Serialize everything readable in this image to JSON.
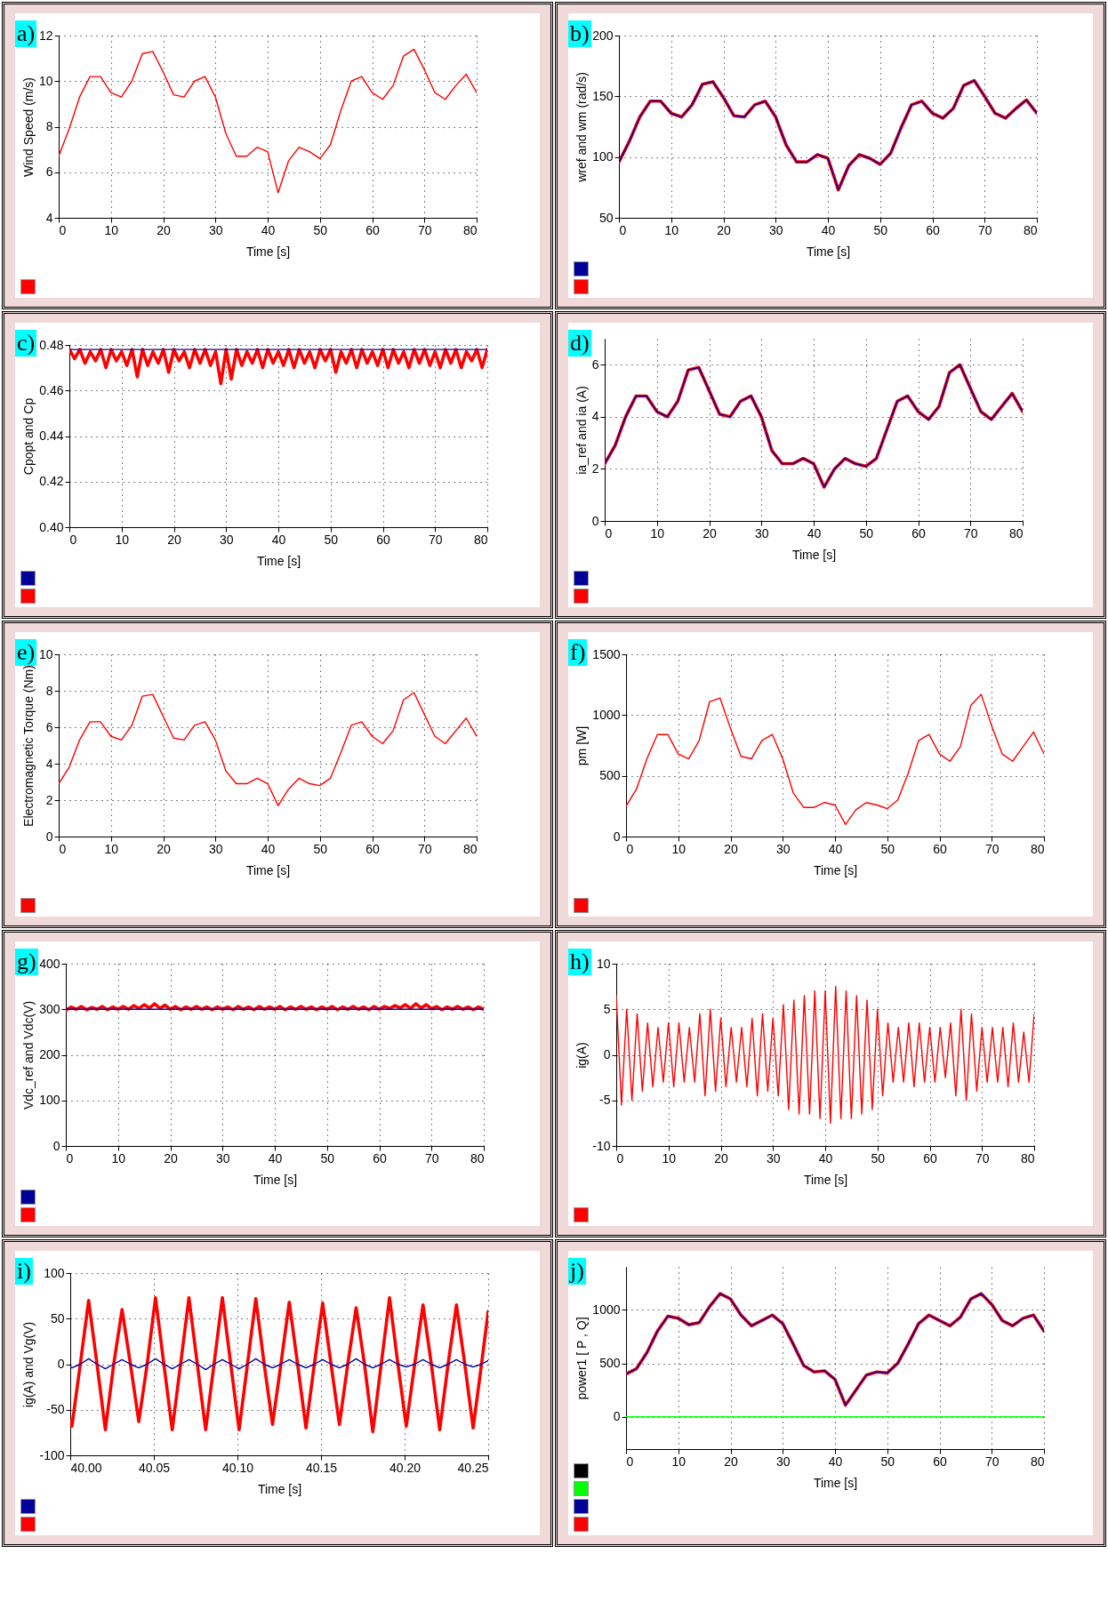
{
  "chart_data": [
    {
      "type": "line",
      "title": "a)",
      "xlabel": "Time [s]",
      "ylabel": "Wind Speed (m/s)",
      "x": [
        0,
        2,
        4,
        6,
        8,
        10,
        12,
        14,
        16,
        18,
        20,
        22,
        24,
        26,
        28,
        30,
        32,
        34,
        36,
        38,
        40,
        42,
        44,
        46,
        48,
        50,
        52,
        54,
        56,
        58,
        60,
        62,
        64,
        66,
        68,
        70,
        72,
        74,
        76,
        78,
        80
      ],
      "series": [
        {
          "color": "#ff0000",
          "values": [
            6.7,
            7.9,
            9.3,
            10.2,
            10.2,
            9.5,
            9.3,
            10.0,
            11.2,
            11.3,
            10.4,
            9.4,
            9.3,
            10.0,
            10.2,
            9.3,
            7.7,
            6.7,
            6.7,
            7.1,
            6.9,
            5.1,
            6.5,
            7.1,
            6.9,
            6.6,
            7.2,
            8.7,
            10.0,
            10.2,
            9.5,
            9.2,
            9.8,
            11.1,
            11.4,
            10.5,
            9.5,
            9.2,
            9.8,
            10.3,
            9.5
          ]
        }
      ],
      "xlim": [
        0,
        80
      ],
      "xticks": [
        0,
        10,
        20,
        30,
        40,
        50,
        60,
        70,
        80
      ],
      "ylim": [
        4,
        12
      ],
      "yticks": [
        4,
        6,
        8,
        10,
        12
      ],
      "grid": true
    },
    {
      "type": "line",
      "title": "b)",
      "xlabel": "Time [s]",
      "ylabel": "wref and wm (rad/s)",
      "x": [
        0,
        2,
        4,
        6,
        8,
        10,
        12,
        14,
        16,
        18,
        20,
        22,
        24,
        26,
        28,
        30,
        32,
        34,
        36,
        38,
        40,
        42,
        44,
        46,
        48,
        50,
        52,
        54,
        56,
        58,
        60,
        62,
        64,
        66,
        68,
        70,
        72,
        74,
        76,
        78,
        80
      ],
      "series": [
        {
          "color": "#000099",
          "values": [
            96,
            113,
            133,
            146,
            146,
            136,
            133,
            143,
            160,
            162,
            149,
            134,
            133,
            143,
            146,
            133,
            110,
            96,
            96,
            102,
            99,
            73,
            93,
            102,
            99,
            94,
            103,
            124,
            143,
            146,
            136,
            132,
            140,
            159,
            163,
            150,
            136,
            132,
            140,
            147,
            136
          ]
        },
        {
          "color": "#ff0000",
          "values": [
            96,
            113,
            133,
            146,
            146,
            136,
            133,
            143,
            160,
            162,
            149,
            134,
            133,
            143,
            146,
            133,
            110,
            96,
            96,
            102,
            99,
            73,
            93,
            102,
            99,
            94,
            103,
            124,
            143,
            146,
            136,
            132,
            140,
            159,
            163,
            150,
            136,
            132,
            140,
            147,
            136
          ]
        }
      ],
      "xlim": [
        0,
        80
      ],
      "xticks": [
        0,
        10,
        20,
        30,
        40,
        50,
        60,
        70,
        80
      ],
      "ylim": [
        50,
        200
      ],
      "yticks": [
        50,
        100,
        150,
        200
      ],
      "grid": true
    },
    {
      "type": "line",
      "title": "c)",
      "xlabel": "Time [s]",
      "ylabel": "Cpopt and Cp",
      "x": [
        0,
        1,
        2,
        3,
        4,
        5,
        6,
        7,
        8,
        9,
        10,
        11,
        12,
        13,
        14,
        15,
        16,
        17,
        18,
        19,
        20,
        21,
        22,
        23,
        24,
        25,
        26,
        27,
        28,
        29,
        30,
        31,
        32,
        33,
        34,
        35,
        36,
        37,
        38,
        39,
        40,
        41,
        42,
        43,
        44,
        45,
        46,
        47,
        48,
        49,
        50,
        51,
        52,
        53,
        54,
        55,
        56,
        57,
        58,
        59,
        60,
        61,
        62,
        63,
        64,
        65,
        66,
        67,
        68,
        69,
        70,
        71,
        72,
        73,
        74,
        75,
        76,
        77,
        78,
        79,
        80
      ],
      "series": [
        {
          "color": "#000099",
          "values": [
            0.478,
            0.478,
            0.478,
            0.478,
            0.478,
            0.478,
            0.478,
            0.478,
            0.478,
            0.478,
            0.478,
            0.478,
            0.478,
            0.478,
            0.478,
            0.478,
            0.478,
            0.478,
            0.478,
            0.478,
            0.478,
            0.478,
            0.478,
            0.478,
            0.478,
            0.478,
            0.478,
            0.478,
            0.478,
            0.478,
            0.478,
            0.478,
            0.478,
            0.478,
            0.478,
            0.478,
            0.478,
            0.478,
            0.478,
            0.478,
            0.478,
            0.478,
            0.478,
            0.478,
            0.478,
            0.478,
            0.478,
            0.478,
            0.478,
            0.478,
            0.478,
            0.478,
            0.478,
            0.478,
            0.478,
            0.478,
            0.478,
            0.478,
            0.478,
            0.478,
            0.478,
            0.478,
            0.478,
            0.478,
            0.478,
            0.478,
            0.478,
            0.478,
            0.478,
            0.478,
            0.478,
            0.478,
            0.478,
            0.478,
            0.478,
            0.478,
            0.478,
            0.478,
            0.478,
            0.478,
            0.478
          ]
        },
        {
          "color": "#ff0000",
          "values": [
            0.478,
            0.474,
            0.478,
            0.472,
            0.477,
            0.473,
            0.478,
            0.47,
            0.478,
            0.473,
            0.477,
            0.471,
            0.478,
            0.466,
            0.478,
            0.471,
            0.477,
            0.472,
            0.478,
            0.468,
            0.478,
            0.473,
            0.477,
            0.47,
            0.478,
            0.472,
            0.478,
            0.471,
            0.477,
            0.463,
            0.478,
            0.465,
            0.478,
            0.471,
            0.477,
            0.472,
            0.478,
            0.47,
            0.478,
            0.472,
            0.477,
            0.471,
            0.478,
            0.47,
            0.478,
            0.472,
            0.477,
            0.47,
            0.478,
            0.473,
            0.478,
            0.468,
            0.477,
            0.472,
            0.478,
            0.47,
            0.478,
            0.472,
            0.477,
            0.471,
            0.478,
            0.47,
            0.478,
            0.472,
            0.477,
            0.47,
            0.478,
            0.472,
            0.478,
            0.471,
            0.477,
            0.47,
            0.478,
            0.472,
            0.478,
            0.47,
            0.477,
            0.473,
            0.478,
            0.47,
            0.478
          ]
        }
      ],
      "xlim": [
        0,
        80
      ],
      "xticks": [
        0,
        10,
        20,
        30,
        40,
        50,
        60,
        70,
        80
      ],
      "ylim": [
        0.4,
        0.48
      ],
      "yticks": [
        {
          "value": 0.4,
          "label": "0.40"
        },
        0.42,
        0.44,
        0.46,
        0.48
      ],
      "grid": true
    },
    {
      "type": "line",
      "title": "d)",
      "xlabel": "Time [s]",
      "ylabel": "ia_ref and ia (A)",
      "x": [
        0,
        2,
        4,
        6,
        8,
        10,
        12,
        14,
        16,
        18,
        20,
        22,
        24,
        26,
        28,
        30,
        32,
        34,
        36,
        38,
        40,
        42,
        44,
        46,
        48,
        50,
        52,
        54,
        56,
        58,
        60,
        62,
        64,
        66,
        68,
        70,
        72,
        74,
        76,
        78,
        80
      ],
      "series": [
        {
          "color": "#000099",
          "values": [
            2.2,
            2.9,
            4.0,
            4.8,
            4.8,
            4.2,
            4.0,
            4.6,
            5.8,
            5.9,
            5.0,
            4.1,
            4.0,
            4.6,
            4.8,
            4.0,
            2.7,
            2.2,
            2.2,
            2.4,
            2.2,
            1.3,
            2.0,
            2.4,
            2.2,
            2.1,
            2.4,
            3.5,
            4.6,
            4.8,
            4.2,
            3.9,
            4.4,
            5.7,
            6.0,
            5.1,
            4.2,
            3.9,
            4.4,
            4.9,
            4.2
          ]
        },
        {
          "color": "#ff0000",
          "values": [
            2.2,
            2.9,
            4.0,
            4.8,
            4.8,
            4.2,
            4.0,
            4.6,
            5.8,
            5.9,
            5.0,
            4.1,
            4.0,
            4.6,
            4.8,
            4.0,
            2.7,
            2.2,
            2.2,
            2.4,
            2.2,
            1.3,
            2.0,
            2.4,
            2.2,
            2.1,
            2.4,
            3.5,
            4.6,
            4.8,
            4.2,
            3.9,
            4.4,
            5.7,
            6.0,
            5.1,
            4.2,
            3.9,
            4.4,
            4.9,
            4.2
          ]
        }
      ],
      "xlim": [
        0,
        80
      ],
      "xticks": [
        0,
        10,
        20,
        30,
        40,
        50,
        60,
        70,
        80
      ],
      "ylim": [
        0,
        7
      ],
      "yticks": [
        0,
        2,
        4,
        6
      ],
      "grid": true
    },
    {
      "type": "line",
      "title": "e)",
      "xlabel": "Time [s]",
      "ylabel": "Electromagnetic Torque (Nm)",
      "x": [
        0,
        2,
        4,
        6,
        8,
        10,
        12,
        14,
        16,
        18,
        20,
        22,
        24,
        26,
        28,
        30,
        32,
        34,
        36,
        38,
        40,
        42,
        44,
        46,
        48,
        50,
        52,
        54,
        56,
        58,
        60,
        62,
        64,
        66,
        68,
        70,
        72,
        74,
        76,
        78,
        80
      ],
      "series": [
        {
          "color": "#ff0000",
          "values": [
            2.9,
            3.8,
            5.3,
            6.3,
            6.3,
            5.5,
            5.3,
            6.1,
            7.7,
            7.8,
            6.6,
            5.4,
            5.3,
            6.1,
            6.3,
            5.3,
            3.6,
            2.9,
            2.9,
            3.2,
            2.9,
            1.7,
            2.6,
            3.2,
            2.9,
            2.8,
            3.2,
            4.6,
            6.1,
            6.3,
            5.5,
            5.1,
            5.8,
            7.5,
            7.9,
            6.7,
            5.5,
            5.1,
            5.8,
            6.5,
            5.5
          ]
        }
      ],
      "xlim": [
        0,
        80
      ],
      "xticks": [
        0,
        10,
        20,
        30,
        40,
        50,
        60,
        70,
        80
      ],
      "ylim": [
        0,
        10
      ],
      "yticks": [
        0,
        2,
        4,
        6,
        8,
        10
      ],
      "grid": true
    },
    {
      "type": "line",
      "title": "f)",
      "xlabel": "Time [s]",
      "ylabel": "pm [W]",
      "x": [
        0,
        2,
        4,
        6,
        8,
        10,
        12,
        14,
        16,
        18,
        20,
        22,
        24,
        26,
        28,
        30,
        32,
        34,
        36,
        38,
        40,
        42,
        44,
        46,
        48,
        50,
        52,
        54,
        56,
        58,
        60,
        62,
        64,
        66,
        68,
        70,
        72,
        74,
        76,
        78,
        80
      ],
      "series": [
        {
          "color": "#ff0000",
          "values": [
            250,
            390,
            640,
            840,
            840,
            680,
            640,
            790,
            1110,
            1140,
            890,
            660,
            640,
            790,
            840,
            640,
            360,
            240,
            240,
            280,
            260,
            100,
            220,
            280,
            260,
            230,
            300,
            520,
            790,
            840,
            680,
            620,
            740,
            1080,
            1170,
            910,
            680,
            620,
            740,
            860,
            680
          ]
        }
      ],
      "xlim": [
        0,
        80
      ],
      "xticks": [
        0,
        10,
        20,
        30,
        40,
        50,
        60,
        70,
        80
      ],
      "ylim": [
        0,
        1500
      ],
      "yticks": [
        0,
        500,
        1000,
        1500
      ],
      "grid": true
    },
    {
      "type": "line",
      "title": "g)",
      "xlabel": "Time [s]",
      "ylabel": "Vdc_ref and Vdc(V)",
      "x": [
        0,
        1,
        2,
        3,
        4,
        5,
        6,
        7,
        8,
        9,
        10,
        11,
        12,
        13,
        14,
        15,
        16,
        17,
        18,
        19,
        20,
        21,
        22,
        23,
        24,
        25,
        26,
        27,
        28,
        29,
        30,
        31,
        32,
        33,
        34,
        35,
        36,
        37,
        38,
        39,
        40,
        41,
        42,
        43,
        44,
        45,
        46,
        47,
        48,
        49,
        50,
        51,
        52,
        53,
        54,
        55,
        56,
        57,
        58,
        59,
        60,
        61,
        62,
        63,
        64,
        65,
        66,
        67,
        68,
        69,
        70,
        71,
        72,
        73,
        74,
        75,
        76,
        77,
        78,
        79,
        80
      ],
      "series": [
        {
          "color": "#000099",
          "values": [
            300,
            300,
            300,
            300,
            300,
            300,
            300,
            300,
            300,
            300,
            300,
            300,
            300,
            300,
            300,
            300,
            300,
            300,
            300,
            300,
            300,
            300,
            300,
            300,
            300,
            300,
            300,
            300,
            300,
            300,
            300,
            300,
            300,
            300,
            300,
            300,
            300,
            300,
            300,
            300,
            300,
            300,
            300,
            300,
            300,
            300,
            300,
            300,
            300,
            300,
            300,
            300,
            300,
            300,
            300,
            300,
            300,
            300,
            300,
            300,
            300,
            300,
            300,
            300,
            300,
            300,
            300,
            300,
            300,
            300,
            300,
            300,
            300,
            300,
            300,
            300,
            300,
            300,
            300,
            300,
            300
          ]
        },
        {
          "color": "#ff0000",
          "values": [
            298,
            305,
            300,
            306,
            299,
            304,
            300,
            306,
            299,
            305,
            300,
            306,
            300,
            308,
            302,
            310,
            303,
            312,
            302,
            309,
            300,
            306,
            299,
            305,
            300,
            306,
            300,
            305,
            299,
            305,
            300,
            305,
            299,
            306,
            300,
            305,
            299,
            306,
            300,
            305,
            300,
            306,
            299,
            305,
            300,
            306,
            300,
            305,
            299,
            305,
            300,
            306,
            299,
            305,
            300,
            306,
            300,
            305,
            299,
            306,
            300,
            306,
            302,
            308,
            303,
            310,
            302,
            312,
            303,
            310,
            301,
            306,
            299,
            305,
            300,
            306,
            300,
            305,
            299,
            305,
            300
          ]
        }
      ],
      "xlim": [
        0,
        80
      ],
      "xticks": [
        0,
        10,
        20,
        30,
        40,
        50,
        60,
        70,
        80
      ],
      "ylim": [
        0,
        400
      ],
      "yticks": [
        0,
        100,
        200,
        300,
        400
      ],
      "grid": true
    },
    {
      "type": "line",
      "title": "h)",
      "xlabel": "Time [s]",
      "ylabel": "ig(A)",
      "x": [
        0,
        1,
        2,
        3,
        4,
        5,
        6,
        7,
        8,
        9,
        10,
        11,
        12,
        13,
        14,
        15,
        16,
        17,
        18,
        19,
        20,
        21,
        22,
        23,
        24,
        25,
        26,
        27,
        28,
        29,
        30,
        31,
        32,
        33,
        34,
        35,
        36,
        37,
        38,
        39,
        40,
        41,
        42,
        43,
        44,
        45,
        46,
        47,
        48,
        49,
        50,
        51,
        52,
        53,
        54,
        55,
        56,
        57,
        58,
        59,
        60,
        61,
        62,
        63,
        64,
        65,
        66,
        67,
        68,
        69,
        70,
        71,
        72,
        73,
        74,
        75,
        76,
        77,
        78,
        79,
        80
      ],
      "series": [
        {
          "color": "#ff0000",
          "values": [
            6.5,
            -5.5,
            5,
            -5,
            4.5,
            -4,
            3.5,
            -3.5,
            3,
            -3,
            3.5,
            -3.5,
            3.5,
            -3,
            3,
            -3,
            4.5,
            -4.5,
            5,
            -4,
            4,
            -3.5,
            3,
            -3,
            3,
            -3.5,
            4,
            -4.5,
            4.5,
            -4,
            4,
            -4.5,
            5.5,
            -6,
            6,
            -6.5,
            6.5,
            -6.5,
            7,
            -7,
            7,
            -7.5,
            7.5,
            -7,
            7,
            -7,
            6.5,
            -6.5,
            6,
            -6,
            5,
            -4.5,
            3.5,
            -3,
            3,
            -3,
            3.5,
            -3.5,
            3.5,
            -3,
            3,
            -3,
            3,
            -2.5,
            3.5,
            -4.5,
            5,
            -5,
            4.5,
            -4,
            3,
            -3,
            3,
            -3,
            3,
            -3.5,
            3.5,
            -3,
            2.5,
            -3,
            4.5
          ]
        }
      ],
      "xlim": [
        0,
        80
      ],
      "xticks": [
        0,
        10,
        20,
        30,
        40,
        50,
        60,
        70,
        80
      ],
      "ylim": [
        -10,
        10
      ],
      "yticks": [
        -10,
        -5,
        0,
        5,
        10
      ],
      "grid": true
    },
    {
      "type": "line",
      "title": "i)",
      "xlabel": "Time [s]",
      "ylabel": "ig(A)  and Vg(V)",
      "x": [
        40,
        40.001,
        40.006,
        40.011,
        40.016,
        40.021,
        40.026,
        40.031,
        40.036,
        40.041,
        40.046,
        40.051,
        40.056,
        40.061,
        40.066,
        40.071,
        40.076,
        40.081,
        40.086,
        40.091,
        40.096,
        40.101,
        40.106,
        40.111,
        40.116,
        40.121,
        40.126,
        40.131,
        40.136,
        40.141,
        40.146,
        40.151,
        40.156,
        40.161,
        40.166,
        40.171,
        40.176,
        40.181,
        40.186,
        40.191,
        40.196,
        40.201,
        40.206,
        40.211,
        40.216,
        40.221,
        40.226,
        40.231,
        40.236,
        40.241,
        40.246,
        40.25
      ],
      "series": [
        {
          "color": "#000099",
          "values": [
            -3,
            -4,
            0,
            6,
            0,
            -5,
            0,
            5,
            0,
            -4,
            0,
            6,
            0,
            -5,
            0,
            5,
            0,
            -6,
            0,
            5,
            0,
            -5,
            0,
            6,
            0,
            -4,
            0,
            5,
            0,
            -4,
            0,
            5,
            0,
            -4,
            0,
            6,
            0,
            -4,
            0,
            5,
            0,
            -3,
            0,
            5,
            0,
            -4,
            0,
            5,
            0,
            -3,
            0,
            4
          ]
        },
        {
          "color": "#ff0000",
          "values": [
            -62,
            -68,
            0,
            70,
            0,
            -72,
            0,
            60,
            0,
            -63,
            0,
            73,
            0,
            -72,
            0,
            73,
            0,
            -72,
            0,
            73,
            0,
            -72,
            0,
            72,
            0,
            -66,
            0,
            68,
            0,
            -70,
            0,
            67,
            0,
            -66,
            0,
            62,
            0,
            -74,
            0,
            73,
            0,
            -68,
            0,
            65,
            0,
            -72,
            0,
            65,
            0,
            -70,
            0,
            58
          ]
        }
      ],
      "xlim": [
        40,
        40.25
      ],
      "xticks": [
        {
          "value": 40,
          "label": "40.00"
        },
        40.05,
        {
          "value": 40.1,
          "label": "40.10"
        },
        40.15,
        {
          "value": 40.2,
          "label": "40.20"
        },
        40.25
      ],
      "ylim": [
        -100,
        100
      ],
      "yticks": [
        -100,
        -50,
        0,
        50,
        100
      ],
      "grid": true
    },
    {
      "type": "line",
      "title": "j)",
      "xlabel": "Time [s]",
      "ylabel": "power1 [ P , Q]",
      "x": [
        0,
        2,
        4,
        6,
        8,
        10,
        12,
        14,
        16,
        18,
        20,
        22,
        24,
        26,
        28,
        30,
        32,
        34,
        36,
        38,
        40,
        42,
        44,
        46,
        48,
        50,
        52,
        54,
        56,
        58,
        60,
        62,
        64,
        66,
        68,
        70,
        72,
        74,
        76,
        78,
        80
      ],
      "series": [
        {
          "color": "#000000",
          "values": [
            null,
            null,
            null,
            null,
            null,
            null,
            null,
            null,
            null,
            null,
            null,
            null,
            null,
            null,
            null,
            null,
            null,
            null,
            null,
            null,
            null,
            null,
            null,
            null,
            null,
            null,
            null,
            null,
            null,
            null,
            null,
            null,
            null,
            null,
            null,
            null,
            null,
            null,
            null,
            null,
            null
          ]
        },
        {
          "color": "#00ff00",
          "values": [
            0,
            0,
            0,
            0,
            0,
            0,
            0,
            0,
            0,
            0,
            0,
            0,
            0,
            0,
            0,
            0,
            0,
            0,
            0,
            0,
            0,
            0,
            0,
            0,
            0,
            0,
            0,
            0,
            0,
            0,
            0,
            0,
            0,
            0,
            0,
            0,
            0,
            0,
            0,
            0,
            0
          ]
        },
        {
          "color": "#000099",
          "values": [
            400,
            450,
            600,
            800,
            940,
            920,
            860,
            880,
            1030,
            1150,
            1100,
            950,
            850,
            900,
            950,
            870,
            680,
            480,
            420,
            430,
            350,
            110,
            250,
            390,
            420,
            410,
            500,
            680,
            870,
            950,
            900,
            850,
            930,
            1100,
            1150,
            1050,
            900,
            850,
            920,
            950,
            800
          ]
        },
        {
          "color": "#ff0000",
          "values": [
            400,
            450,
            600,
            800,
            940,
            920,
            860,
            880,
            1030,
            1150,
            1100,
            950,
            850,
            900,
            950,
            870,
            680,
            480,
            420,
            430,
            350,
            110,
            250,
            390,
            420,
            410,
            500,
            680,
            870,
            950,
            900,
            850,
            930,
            1100,
            1150,
            1050,
            900,
            850,
            920,
            950,
            800
          ]
        }
      ],
      "xlim": [
        0,
        80
      ],
      "xticks": [
        0,
        10,
        20,
        30,
        40,
        50,
        60,
        70,
        80
      ],
      "ylim": [
        -300,
        1400
      ],
      "yticks": [
        0,
        500,
        1000
      ],
      "grid": true
    }
  ]
}
